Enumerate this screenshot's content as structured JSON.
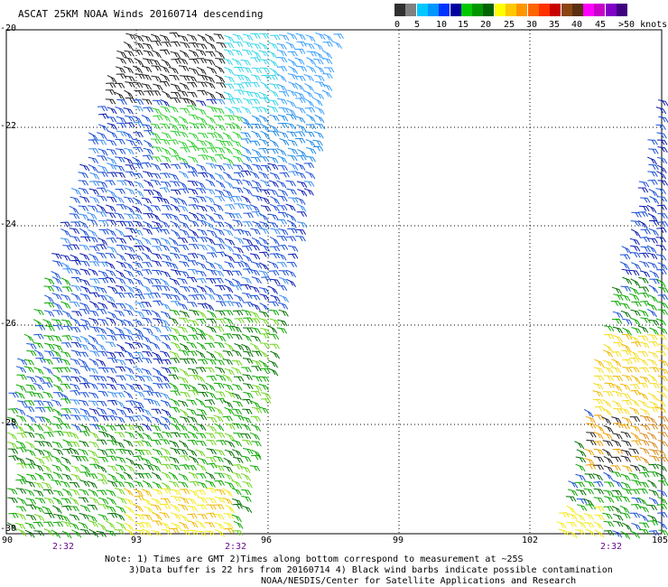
{
  "title": "ASCAT 25KM NOAA Winds 20160714 descending",
  "colorbar": {
    "colors": [
      "#303030",
      "#808080",
      "#00c8ff",
      "#0096ff",
      "#0032ff",
      "#0000a0",
      "#00c800",
      "#009600",
      "#006400",
      "#ffff00",
      "#ffc800",
      "#ff9600",
      "#ff6400",
      "#ff3200",
      "#c80000",
      "#8b4513",
      "#5a3010",
      "#ff00ff",
      "#c800c8",
      "#8000c8",
      "#400080"
    ],
    "labels": [
      "0",
      "5",
      "10",
      "15",
      "20",
      "25",
      "30",
      "35",
      "40",
      "45",
      ">50 knots"
    ]
  },
  "axes": {
    "lat_labels": [
      "-20",
      "-22",
      "-24",
      "-26",
      "-28",
      "-30"
    ],
    "lon_labels": [
      "90",
      "93",
      "96",
      "99",
      "102",
      "105"
    ]
  },
  "time_labels": [
    "2:32",
    "2:32",
    "2:32"
  ],
  "notes": {
    "line1": "Note: 1) Times are GMT 2)Times along bottom correspond to measurement at ~25S",
    "line2": "3)Data buffer is 22 hrs from 20160714 4) Black wind barbs indicate possible contamination",
    "line3": "NOAA/NESDIS/Center for Satellite Applications and Research"
  }
}
